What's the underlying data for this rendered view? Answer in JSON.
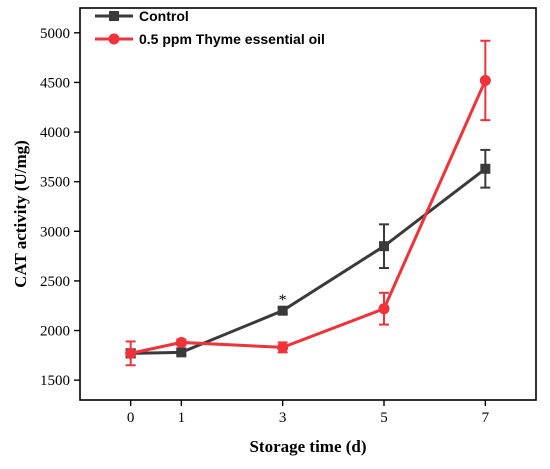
{
  "chart_data": {
    "type": "line",
    "title": "",
    "xlabel": "Storage time (d)",
    "ylabel": "CAT activity (U/mg)",
    "x_ticks": [
      0,
      1,
      3,
      5,
      7
    ],
    "y_ticks": [
      1500,
      2000,
      2500,
      3000,
      3500,
      4000,
      4500,
      5000
    ],
    "xlim": [
      -1,
      8
    ],
    "ylim": [
      1300,
      5250
    ],
    "grid": false,
    "legend_position": "top-left",
    "series": [
      {
        "name": "Control",
        "color": "#3a3a3a",
        "marker": "square",
        "x": [
          0,
          1,
          3,
          5,
          7
        ],
        "y": [
          1770,
          1780,
          2200,
          2850,
          3630
        ],
        "err": [
          40,
          30,
          30,
          220,
          190
        ]
      },
      {
        "name": "0.5 ppm Thyme essential oil",
        "color": "#f0333a",
        "marker": "circle",
        "x": [
          0,
          1,
          3,
          5,
          7
        ],
        "y": [
          1770,
          1880,
          1830,
          2220,
          4520
        ],
        "err": [
          120,
          30,
          50,
          160,
          400
        ]
      }
    ],
    "annotations": [
      {
        "text": "*",
        "x": 3,
        "y": 2320
      }
    ]
  }
}
